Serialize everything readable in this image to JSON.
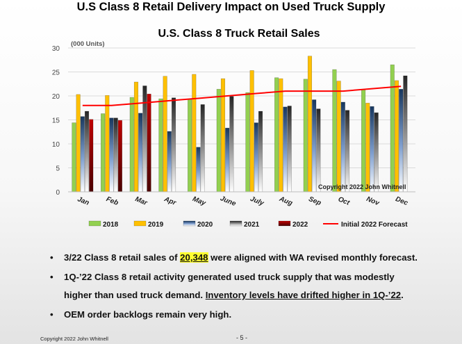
{
  "slide": {
    "title": "U.S Class 8 Retail Delivery Impact on Used Truck Supply",
    "footer_copyright": "Copyright 2022 John Whitnell",
    "page_number": "- 5 -"
  },
  "chart_data": {
    "type": "bar",
    "title": "U.S. Class 8 Truck Retail Sales",
    "units_label": "(000 Units)",
    "watermark": "Copyright 2022 John Whitnell",
    "categories": [
      "Jan",
      "Feb",
      "Mar",
      "Apr",
      "May",
      "June",
      "July",
      "Aug",
      "Sep",
      "Oct",
      "Nov",
      "Dec"
    ],
    "ylim": [
      0,
      30
    ],
    "yticks": [
      0,
      5,
      10,
      15,
      20,
      25,
      30
    ],
    "grid": true,
    "legend_position": "bottom",
    "series": [
      {
        "name": "2018",
        "color": "#92d050",
        "values": [
          14.4,
          16.3,
          19.7,
          19.4,
          19.3,
          21.4,
          20.7,
          23.8,
          23.5,
          25.5,
          21.3,
          26.5
        ]
      },
      {
        "name": "2019",
        "color": "#ffc000",
        "values": [
          20.3,
          20.1,
          22.9,
          24.1,
          24.5,
          23.6,
          25.3,
          23.6,
          28.3,
          23.1,
          18.5,
          23.2
        ]
      },
      {
        "name": "2020",
        "color": "#4f81bd",
        "values": [
          15.7,
          15.4,
          16.4,
          12.6,
          9.3,
          13.3,
          14.4,
          17.7,
          19.2,
          18.7,
          17.8,
          21.4
        ]
      },
      {
        "name": "2021",
        "color": "#7f7f7f",
        "values": [
          16.8,
          15.4,
          22.1,
          19.6,
          18.2,
          19.9,
          16.8,
          17.9,
          17.3,
          17.0,
          16.5,
          24.2
        ]
      },
      {
        "name": "2022",
        "color": "#c00000",
        "values": [
          15.1,
          14.9,
          20.4,
          null,
          null,
          null,
          null,
          null,
          null,
          null,
          null,
          null
        ]
      }
    ],
    "forecast": {
      "name": "Initial 2022 Forecast",
      "color": "#ff0000",
      "values": [
        18.0,
        18.0,
        18.5,
        19.0,
        19.5,
        20.0,
        20.5,
        21.0,
        21.0,
        21.0,
        21.5,
        22.0
      ]
    }
  },
  "bullets": [
    {
      "pre": "3/22 Class 8 retail sales of ",
      "highlight": "20,348",
      "post": " were aligned with WA revised monthly forecast."
    },
    {
      "line1": "1Q-’22 Class 8 retail activity generated used truck supply that was modestly",
      "line2_pre": "higher than used truck demand.  ",
      "line2_underline": "Inventory levels have drifted higher in 1Q-’22",
      "line2_post": "."
    },
    {
      "text": "OEM order backlogs remain very high."
    }
  ]
}
